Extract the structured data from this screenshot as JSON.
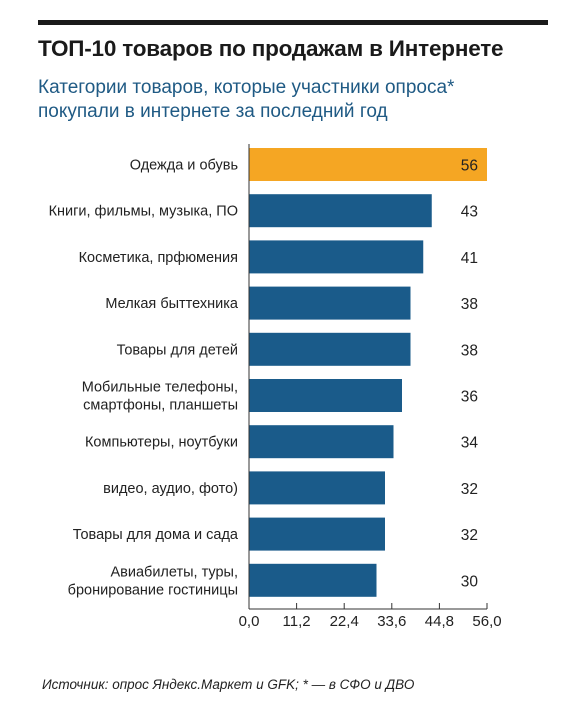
{
  "title": "ТОП-10 товаров по продажам в Интернете",
  "subtitle_lines": [
    "Категории товаров, которые участники опроса*",
    "покупали в интернете за последний год"
  ],
  "source": "Источник: опрос Яндекс.Маркет и GFK; * — в СФО и ДВО",
  "colors": {
    "highlight": "#f5a623",
    "bar": "#1a5b8a",
    "subtitle": "#1f5a84"
  },
  "chart_data": {
    "type": "bar",
    "orientation": "horizontal",
    "categories": [
      [
        "Одежда и обувь"
      ],
      [
        "Книги, фильмы, музыка, ПО"
      ],
      [
        "Косметика, прфюмения"
      ],
      [
        "Мелкая быттехника"
      ],
      [
        "Товары для детей"
      ],
      [
        "Мобильные телефоны,",
        "смартфоны, планшеты"
      ],
      [
        "Компьютеры, ноутбуки"
      ],
      [
        "видео, аудио, фото)"
      ],
      [
        "Товары для дома и сада"
      ],
      [
        "Авиабилеты, туры,",
        "бронирование гостиницы"
      ]
    ],
    "values": [
      56,
      43,
      41,
      38,
      38,
      36,
      34,
      32,
      32,
      30
    ],
    "value_labels": [
      "56",
      "43",
      "41",
      "38",
      "38",
      "36",
      "34",
      "32",
      "32",
      "30"
    ],
    "highlight_index": 0,
    "xlim": [
      0,
      56
    ],
    "xticks": [
      "0,0",
      "11,2",
      "22,4",
      "33,6",
      "44,8",
      "56,0"
    ],
    "grid": false
  }
}
